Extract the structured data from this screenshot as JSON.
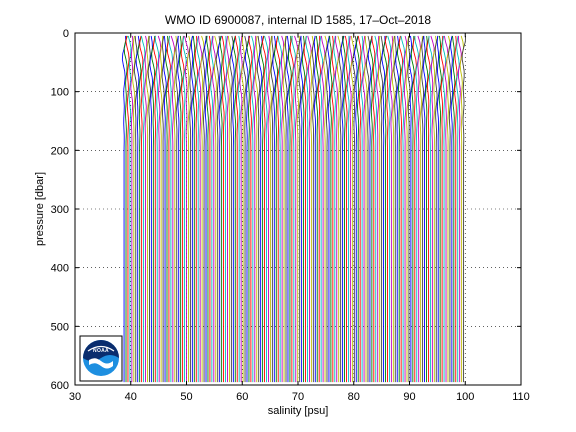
{
  "chart_data": {
    "type": "line",
    "title": "WMO ID 6900087, internal ID 1585, 17–Oct–2018",
    "xlabel": "salinity [psu]",
    "ylabel": "pressure [dbar]",
    "xlim": [
      30,
      110
    ],
    "ylim": [
      0,
      600
    ],
    "y_reversed": true,
    "grid": true,
    "grid_style": "dotted",
    "x_ticks": [
      "30",
      "40",
      "50",
      "60",
      "70",
      "80",
      "90",
      "100",
      "110"
    ],
    "y_ticks": [
      "0",
      "100",
      "200",
      "300",
      "400",
      "500",
      "600"
    ],
    "series_colors": [
      "#0000ff",
      "#008000",
      "#ff0000",
      "#00bfbf",
      "#bf00bf",
      "#bfbf00",
      "#404040"
    ],
    "profiles": {
      "x_start": 38.8,
      "x_end": 100.0,
      "step": 0.35,
      "pressure_top": 5,
      "pressure_bottom": 600,
      "note_extents": "profiles span full depth across the salinity range"
    },
    "logo": {
      "text": "NOAA",
      "colors": [
        "#0a2d6e",
        "#1e8fe0",
        "#ffffff"
      ]
    }
  }
}
